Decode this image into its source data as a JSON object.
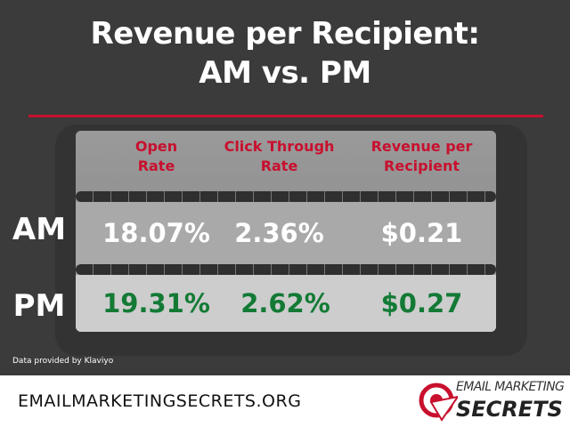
{
  "title": {
    "line1": "Revenue per Recipient:",
    "line2": "AM vs. PM"
  },
  "table": {
    "columns": [
      "Open Rate",
      "Click Through Rate",
      "Revenue per Recipient"
    ],
    "columns_lines": [
      [
        "Open",
        "Rate"
      ],
      [
        "Click Through",
        "Rate"
      ],
      [
        "Revenue per",
        "Recipient"
      ]
    ],
    "rows": [
      {
        "label": "AM",
        "values": [
          "18.07%",
          "2.36%",
          "$0.21"
        ]
      },
      {
        "label": "PM",
        "values": [
          "19.31%",
          "2.62%",
          "$0.27"
        ]
      }
    ]
  },
  "note": "Data provided by Klaviyo",
  "footer": {
    "url": "EMAILMARKETINGSECRETS.ORG",
    "logo_text": [
      "EMAIL MARKETING",
      "SECRETS"
    ]
  },
  "colors": {
    "accent": "#c8102e",
    "pm_value": "#137a35",
    "background": "#3b3b3b"
  }
}
